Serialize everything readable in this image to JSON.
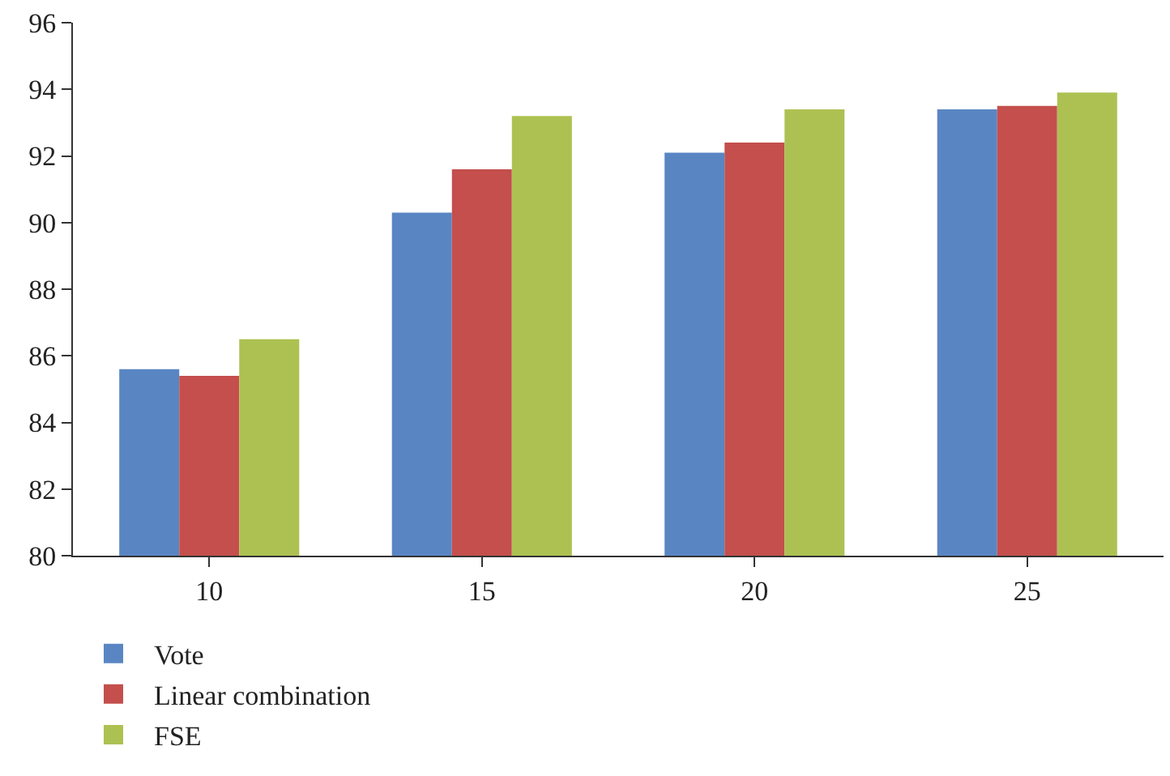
{
  "chart_data": {
    "type": "bar",
    "categories": [
      "10",
      "15",
      "20",
      "25"
    ],
    "series": [
      {
        "name": "Vote",
        "color": "#5986c3",
        "values": [
          85.6,
          90.3,
          92.1,
          93.4
        ]
      },
      {
        "name": "Linear combination",
        "color": "#c44f4c",
        "values": [
          85.4,
          91.6,
          92.4,
          93.5
        ]
      },
      {
        "name": "FSE",
        "color": "#adc152",
        "values": [
          86.5,
          93.2,
          93.4,
          93.9
        ]
      }
    ],
    "ylim": [
      80,
      96
    ],
    "yticks": [
      80,
      82,
      84,
      86,
      88,
      90,
      92,
      94,
      96
    ],
    "legend": "bottom left"
  }
}
